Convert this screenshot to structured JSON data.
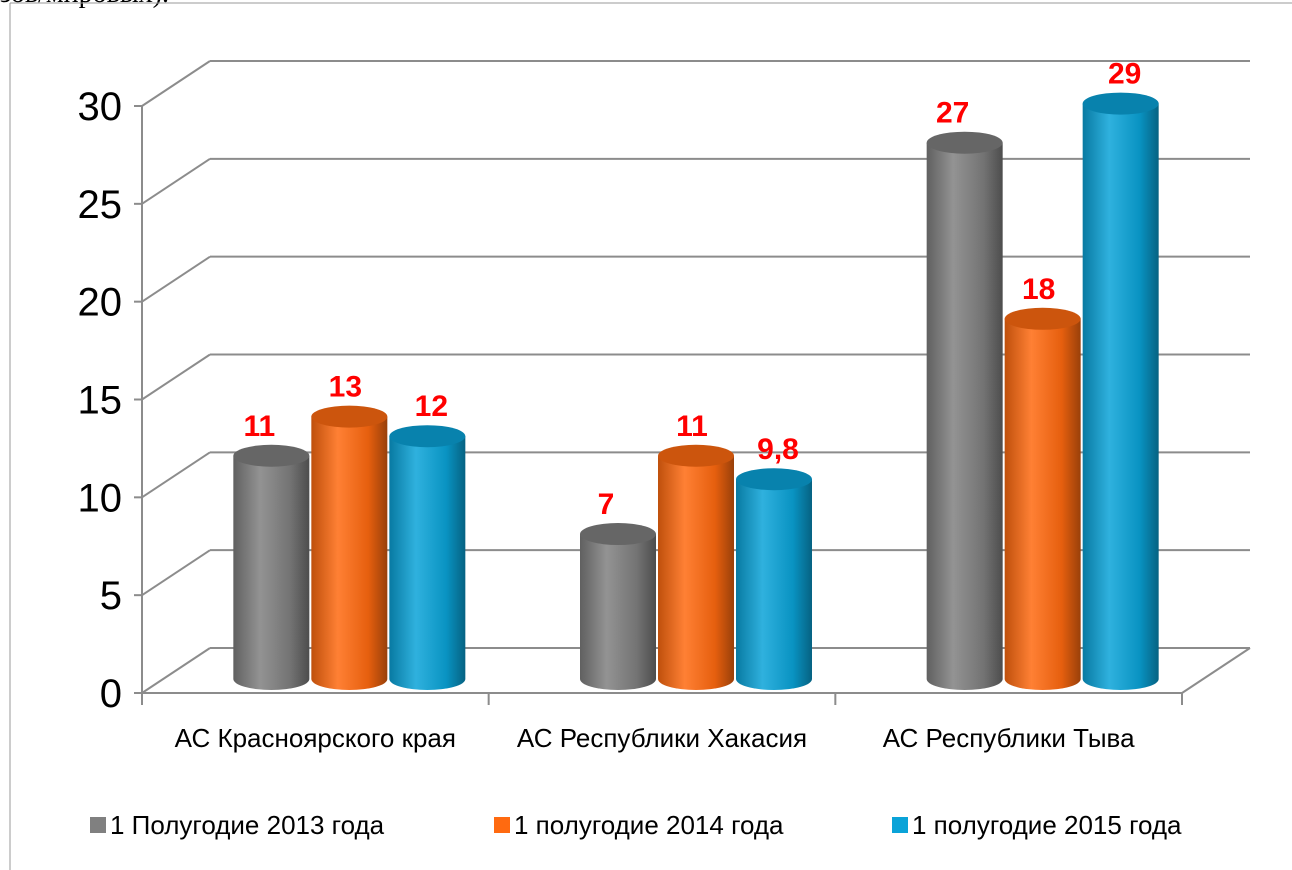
{
  "page_fragment": "зов/мировых).",
  "chart_data": {
    "type": "bar3d",
    "categories": [
      "АС Красноярского края",
      "АС Республики Хакасия",
      "АС Республики Тыва"
    ],
    "series": [
      {
        "name": "1 Полугодие 2013 года",
        "color": "#808080",
        "values": [
          11,
          7,
          27
        ]
      },
      {
        "name": "1 полугодие 2014 года",
        "color": "#ff6a10",
        "values": [
          13,
          11,
          18
        ]
      },
      {
        "name": "1 полугодие 2015 года",
        "color": "#0aa3d8",
        "values": [
          12,
          9.8,
          29
        ],
        "value_labels": [
          "12",
          "9,8",
          "29"
        ]
      }
    ],
    "ylim": [
      0,
      30
    ],
    "yticks": [
      0,
      5,
      10,
      15,
      20,
      25,
      30
    ],
    "grid": true
  }
}
